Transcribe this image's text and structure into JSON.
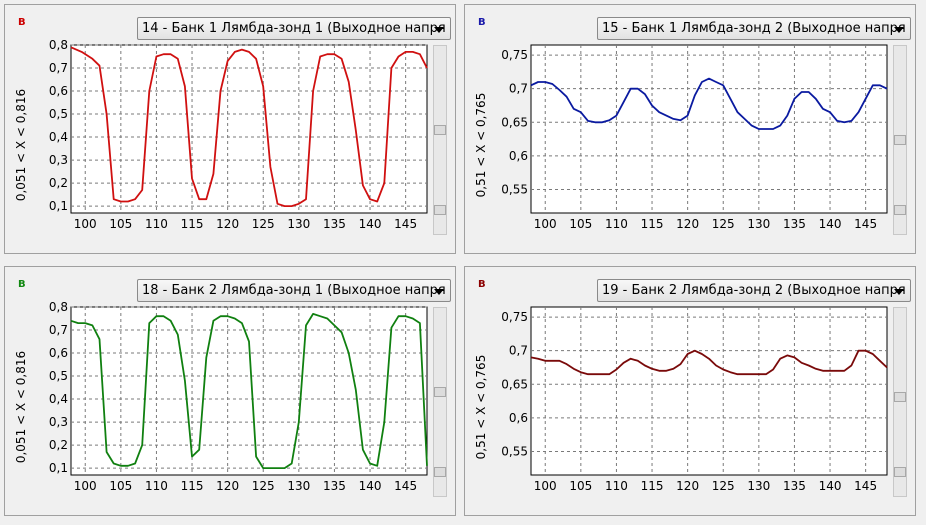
{
  "panels": [
    {
      "unit": "В",
      "unit_color": "#cc0000",
      "selector": "14 - Банк 1 Лямбда-зонд 1 (Выходное напря",
      "ylabel": "0,051   < X <   0,816",
      "chart_data": {
        "type": "line",
        "xlim": [
          98,
          148
        ],
        "ylim": [
          0.07,
          0.8
        ],
        "xticks": [
          100,
          105,
          110,
          115,
          120,
          125,
          130,
          135,
          140,
          145
        ],
        "yticks": [
          0.1,
          0.2,
          0.3,
          0.4,
          0.5,
          0.6,
          0.7,
          0.8
        ],
        "ytick_labels": [
          "0,1",
          "0,2",
          "0,3",
          "0,4",
          "0,5",
          "0,6",
          "0,7",
          "0,8"
        ],
        "series": [
          {
            "color": "#d01010",
            "x": [
              98,
              99.5,
              101,
              102,
              103,
              104,
              105,
              106,
              107,
              108,
              109,
              110,
              111,
              112,
              113,
              114,
              115,
              116,
              117,
              118,
              119,
              120,
              121,
              122,
              123,
              124,
              125,
              126,
              127,
              128,
              129,
              130,
              131,
              132,
              133,
              134,
              135,
              136,
              137,
              138,
              139,
              140,
              141,
              142,
              143,
              144,
              145,
              146,
              147,
              148
            ],
            "y": [
              0.79,
              0.77,
              0.74,
              0.71,
              0.5,
              0.13,
              0.12,
              0.12,
              0.13,
              0.17,
              0.6,
              0.75,
              0.76,
              0.76,
              0.74,
              0.62,
              0.22,
              0.13,
              0.13,
              0.24,
              0.6,
              0.73,
              0.77,
              0.78,
              0.77,
              0.74,
              0.62,
              0.27,
              0.11,
              0.1,
              0.1,
              0.11,
              0.13,
              0.6,
              0.75,
              0.76,
              0.76,
              0.74,
              0.64,
              0.43,
              0.19,
              0.13,
              0.12,
              0.2,
              0.7,
              0.75,
              0.77,
              0.77,
              0.76,
              0.7
            ]
          }
        ]
      }
    },
    {
      "unit": "В",
      "unit_color": "#1a1aaa",
      "selector": "15 - Банк 1 Лямбда-зонд 2 (Выходное напря",
      "ylabel": "0,51   < X <   0,765",
      "chart_data": {
        "type": "line",
        "xlim": [
          98,
          148
        ],
        "ylim": [
          0.515,
          0.765
        ],
        "xticks": [
          100,
          105,
          110,
          115,
          120,
          125,
          130,
          135,
          140,
          145
        ],
        "yticks": [
          0.55,
          0.6,
          0.65,
          0.7,
          0.75
        ],
        "ytick_labels": [
          "0,55",
          "0,6",
          "0,65",
          "0,7",
          "0,75"
        ],
        "series": [
          {
            "color": "#0a1aa0",
            "x": [
              98,
              99,
              100,
              101,
              102,
              103,
              104,
              105,
              106,
              107,
              108,
              109,
              110,
              111,
              112,
              113,
              114,
              115,
              116,
              117,
              118,
              119,
              120,
              121,
              122,
              123,
              124,
              125,
              126,
              127,
              128,
              129,
              130,
              131,
              132,
              133,
              134,
              135,
              136,
              137,
              138,
              139,
              140,
              141,
              142,
              143,
              144,
              145,
              146,
              147,
              148
            ],
            "y": [
              0.705,
              0.71,
              0.71,
              0.707,
              0.698,
              0.688,
              0.67,
              0.665,
              0.652,
              0.65,
              0.65,
              0.653,
              0.66,
              0.68,
              0.7,
              0.7,
              0.692,
              0.675,
              0.665,
              0.66,
              0.655,
              0.653,
              0.66,
              0.69,
              0.71,
              0.715,
              0.71,
              0.705,
              0.685,
              0.665,
              0.655,
              0.645,
              0.64,
              0.64,
              0.64,
              0.645,
              0.66,
              0.685,
              0.695,
              0.695,
              0.685,
              0.67,
              0.665,
              0.652,
              0.65,
              0.652,
              0.665,
              0.685,
              0.705,
              0.705,
              0.7
            ]
          }
        ]
      }
    },
    {
      "unit": "В",
      "unit_color": "#118811",
      "selector": "18 - Банк 2 Лямбда-зонд 1 (Выходное напря",
      "ylabel": "0,051   < X <   0,816",
      "chart_data": {
        "type": "line",
        "xlim": [
          98,
          148
        ],
        "ylim": [
          0.07,
          0.8
        ],
        "xticks": [
          100,
          105,
          110,
          115,
          120,
          125,
          130,
          135,
          140,
          145
        ],
        "yticks": [
          0.1,
          0.2,
          0.3,
          0.4,
          0.5,
          0.6,
          0.7,
          0.8
        ],
        "ytick_labels": [
          "0,1",
          "0,2",
          "0,3",
          "0,4",
          "0,5",
          "0,6",
          "0,7",
          "0,8"
        ],
        "series": [
          {
            "color": "#108010",
            "x": [
              98,
              99,
              100,
              101,
              102,
              103,
              104,
              105,
              106,
              107,
              108,
              109,
              110,
              111,
              112,
              113,
              114,
              115,
              116,
              117,
              118,
              119,
              120,
              121,
              122,
              123,
              124,
              125,
              126,
              127,
              128,
              129,
              130,
              131,
              132,
              133,
              134,
              135,
              136,
              137,
              138,
              139,
              140,
              141,
              142,
              143,
              144,
              145,
              146,
              147,
              148
            ],
            "y": [
              0.74,
              0.73,
              0.73,
              0.72,
              0.66,
              0.17,
              0.12,
              0.11,
              0.11,
              0.12,
              0.2,
              0.73,
              0.76,
              0.76,
              0.74,
              0.68,
              0.48,
              0.15,
              0.18,
              0.58,
              0.74,
              0.76,
              0.76,
              0.75,
              0.73,
              0.65,
              0.15,
              0.1,
              0.1,
              0.1,
              0.1,
              0.12,
              0.3,
              0.72,
              0.77,
              0.76,
              0.75,
              0.72,
              0.69,
              0.6,
              0.44,
              0.18,
              0.12,
              0.11,
              0.3,
              0.71,
              0.76,
              0.76,
              0.75,
              0.73,
              0.11
            ]
          }
        ]
      }
    },
    {
      "unit": "В",
      "unit_color": "#8b0000",
      "selector": "19 - Банк 2 Лямбда-зонд 2 (Выходное напря",
      "ylabel": "0,51   < X <   0,765",
      "chart_data": {
        "type": "line",
        "xlim": [
          98,
          148
        ],
        "ylim": [
          0.515,
          0.765
        ],
        "xticks": [
          100,
          105,
          110,
          115,
          120,
          125,
          130,
          135,
          140,
          145
        ],
        "yticks": [
          0.55,
          0.6,
          0.65,
          0.7,
          0.75
        ],
        "ytick_labels": [
          "0,55",
          "0,6",
          "0,65",
          "0,7",
          "0,75"
        ],
        "series": [
          {
            "color": "#7a0a0a",
            "x": [
              98,
              99,
              100,
              101,
              102,
              103,
              104,
              105,
              106,
              107,
              108,
              109,
              110,
              111,
              112,
              113,
              114,
              115,
              116,
              117,
              118,
              119,
              120,
              121,
              122,
              123,
              124,
              125,
              126,
              127,
              128,
              129,
              130,
              131,
              132,
              133,
              134,
              135,
              136,
              137,
              138,
              139,
              140,
              141,
              142,
              143,
              144,
              145,
              146,
              147,
              148
            ],
            "y": [
              0.69,
              0.688,
              0.685,
              0.685,
              0.685,
              0.68,
              0.673,
              0.668,
              0.665,
              0.665,
              0.665,
              0.665,
              0.672,
              0.682,
              0.688,
              0.685,
              0.678,
              0.673,
              0.67,
              0.67,
              0.673,
              0.68,
              0.695,
              0.7,
              0.695,
              0.688,
              0.678,
              0.672,
              0.668,
              0.665,
              0.665,
              0.665,
              0.665,
              0.665,
              0.672,
              0.688,
              0.693,
              0.69,
              0.682,
              0.678,
              0.673,
              0.67,
              0.67,
              0.67,
              0.67,
              0.678,
              0.7,
              0.7,
              0.695,
              0.685,
              0.675
            ]
          }
        ]
      }
    }
  ]
}
